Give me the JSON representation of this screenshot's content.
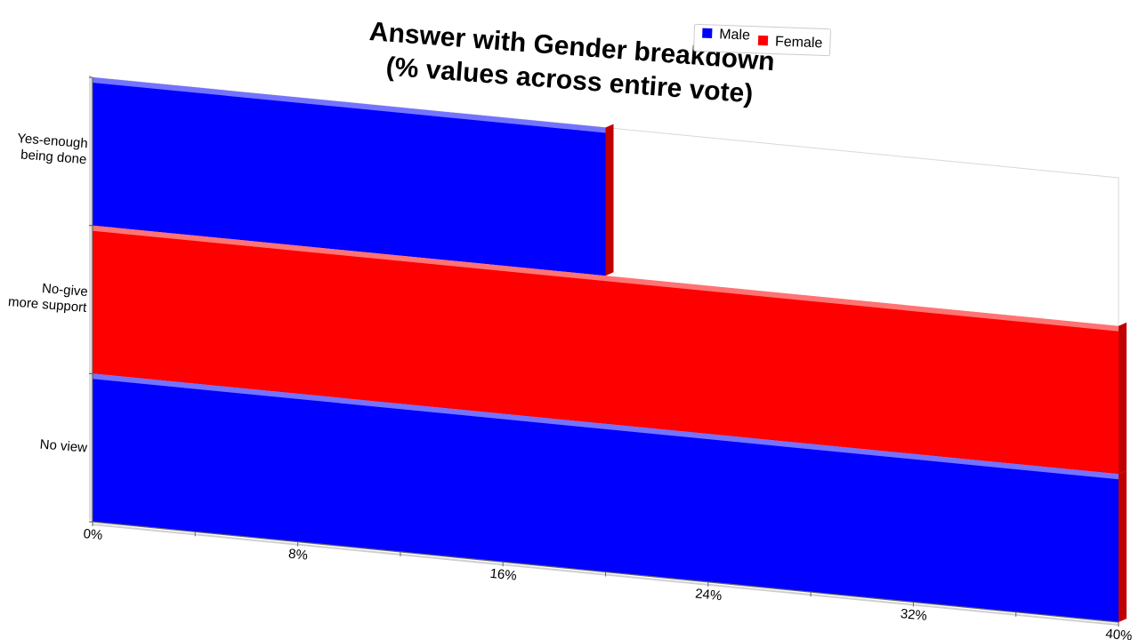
{
  "chart_data": {
    "type": "bar",
    "orientation": "horizontal",
    "stacked": true,
    "title": [
      "Answer with Gender breakdown",
      "(% values across entire vote)"
    ],
    "categories": [
      "Yes-enough\nbeing done",
      "No-give\nmore support",
      "No view"
    ],
    "series": [
      {
        "name": "Male",
        "color": "#0000ff",
        "values": [
          20,
          0,
          40
        ]
      },
      {
        "name": "Female",
        "color": "#ff0000",
        "values": [
          0,
          40,
          0
        ]
      }
    ],
    "xlim": [
      0,
      40
    ],
    "xticks": [
      0,
      8,
      16,
      24,
      32,
      40
    ],
    "xtick_labels": [
      "0%",
      "8%",
      "16%",
      "24%",
      "32%",
      "40%"
    ],
    "legend": {
      "placement": "top-right",
      "entries": [
        "Male",
        "Female"
      ]
    },
    "grid": false
  }
}
